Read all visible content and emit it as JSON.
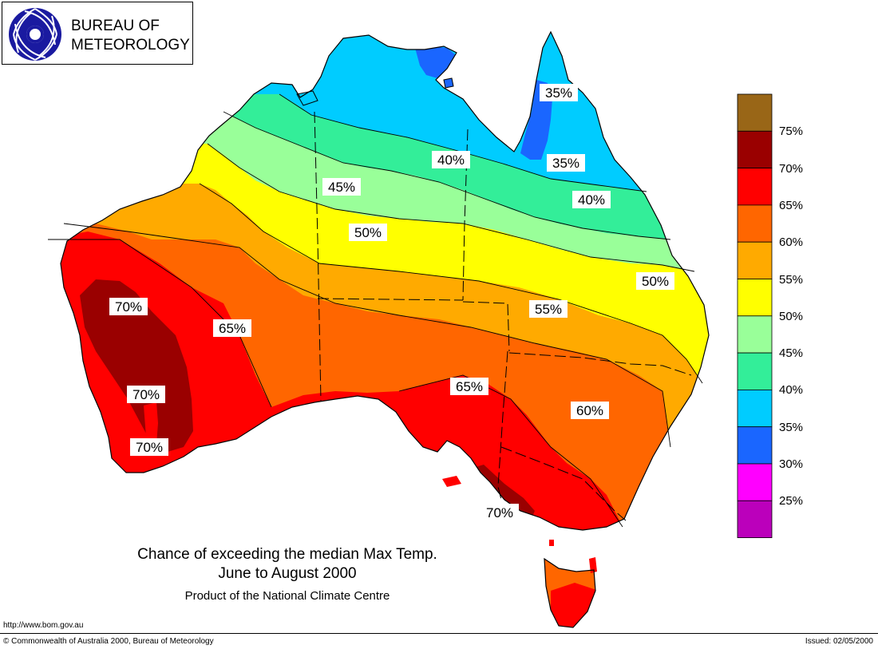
{
  "logo": {
    "line1": "BUREAU OF",
    "line2": "METEOROLOGY"
  },
  "title": {
    "line1": "Chance of exceeding the median Max Temp.",
    "line2": "June to August 2000",
    "line3": "Product of the National Climate Centre"
  },
  "footer": {
    "url": "http://www.bom.gov.au",
    "copyright": "© Commonwealth of Australia 2000, Bureau of Meteorology",
    "issued": "Issued: 02/05/2000"
  },
  "legend": {
    "bins": [
      {
        "label": "75%",
        "color": "#996617"
      },
      {
        "label": "70%",
        "color": "#9a0000"
      },
      {
        "label": "65%",
        "color": "#ff0000"
      },
      {
        "label": "60%",
        "color": "#ff6600"
      },
      {
        "label": "55%",
        "color": "#ffaa00"
      },
      {
        "label": "50%",
        "color": "#ffff00"
      },
      {
        "label": "45%",
        "color": "#99ff99"
      },
      {
        "label": "40%",
        "color": "#33ee99"
      },
      {
        "label": "35%",
        "color": "#00ccff"
      },
      {
        "label": "30%",
        "color": "#1a66ff"
      },
      {
        "label": "25%",
        "color": "#ff00ff"
      },
      {
        "label": "",
        "color": "#bb00bb"
      }
    ]
  },
  "map_labels": [
    {
      "text": "35%"
    },
    {
      "text": "35%"
    },
    {
      "text": "40%"
    },
    {
      "text": "40%"
    },
    {
      "text": "45%"
    },
    {
      "text": "50%"
    },
    {
      "text": "50%"
    },
    {
      "text": "55%"
    },
    {
      "text": "70%"
    },
    {
      "text": "65%"
    },
    {
      "text": "70%"
    },
    {
      "text": "70%"
    },
    {
      "text": "65%"
    },
    {
      "text": "60%"
    },
    {
      "text": "70%"
    }
  ]
}
